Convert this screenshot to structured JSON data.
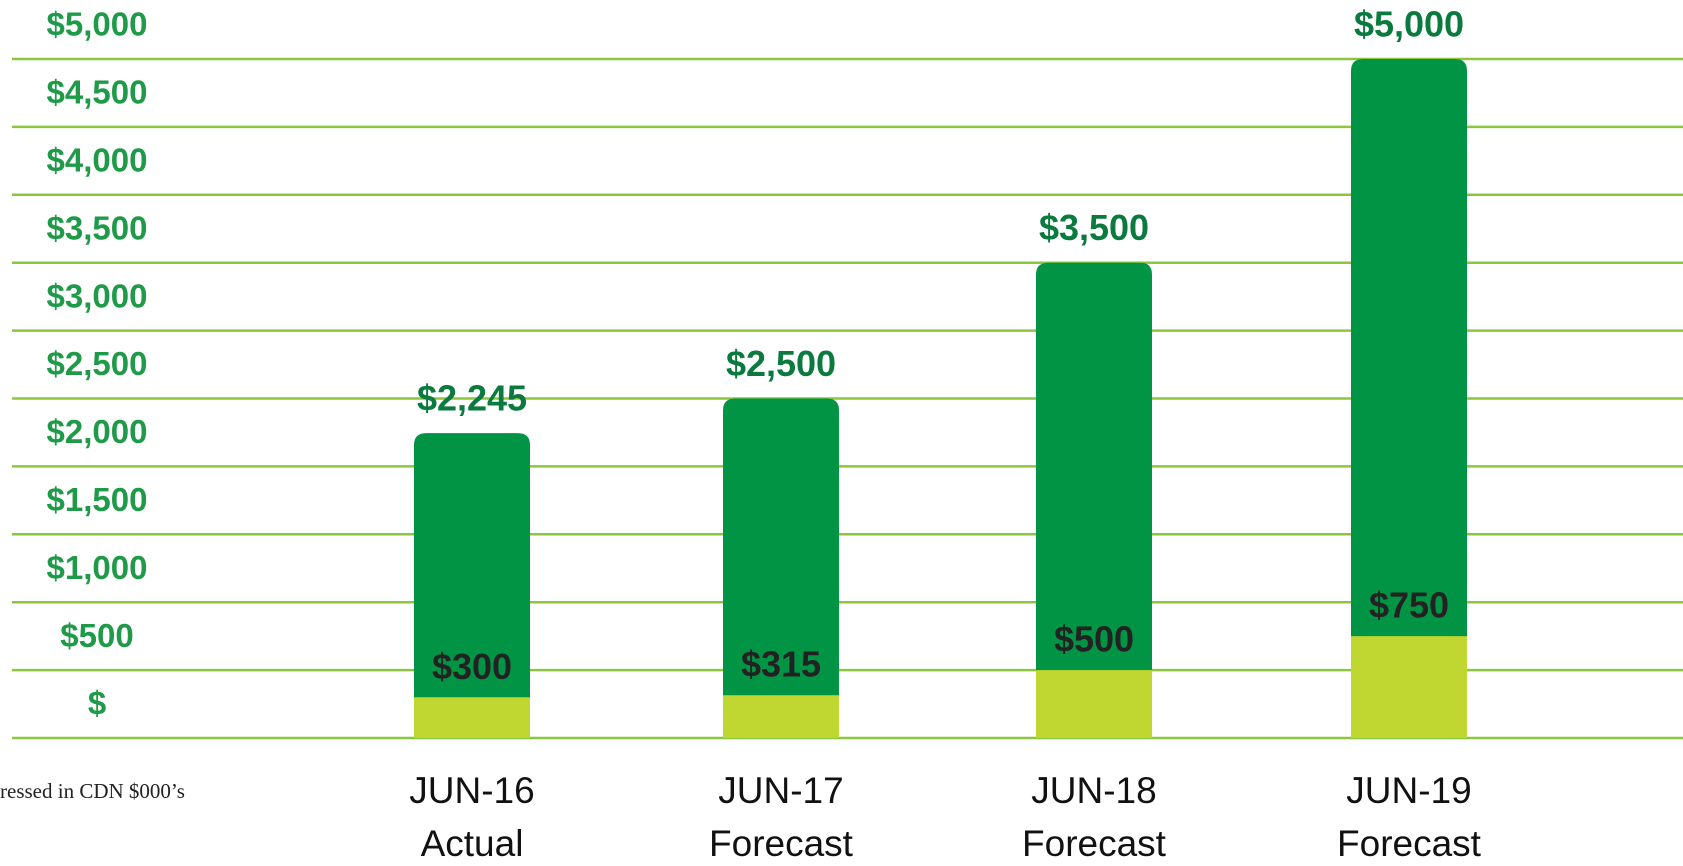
{
  "chart_data": {
    "type": "bar",
    "categories": [
      "JUN-16",
      "JUN-17",
      "JUN-18",
      "JUN-19"
    ],
    "category_sublabels": [
      "Actual",
      "Forecast",
      "Forecast",
      "Forecast"
    ],
    "series": [
      {
        "color": "#009444",
        "values": [
          2245,
          2500,
          3500,
          5000
        ],
        "value_labels": [
          "$2,245",
          "$2,500",
          "$3,500",
          "$5,000"
        ]
      },
      {
        "color": "#bfd730",
        "values": [
          300,
          315,
          500,
          750
        ],
        "value_labels": [
          "$300",
          "$315",
          "$500",
          "$750"
        ]
      }
    ],
    "overlap": true,
    "ylim": [
      0,
      5000
    ],
    "yticks": [
      {
        "value": 0,
        "label": "$"
      },
      {
        "value": 500,
        "label": "$500"
      },
      {
        "value": 1000,
        "label": "$1,000"
      },
      {
        "value": 1500,
        "label": "$1,500"
      },
      {
        "value": 2000,
        "label": "$2,000"
      },
      {
        "value": 2500,
        "label": "$2,500"
      },
      {
        "value": 3000,
        "label": "$3,000"
      },
      {
        "value": 3500,
        "label": "$3,500"
      },
      {
        "value": 4000,
        "label": "$4,000"
      },
      {
        "value": 4500,
        "label": "$4,500"
      },
      {
        "value": 5000,
        "label": "$5,000"
      }
    ],
    "grid": true,
    "grid_color": "#8cc63f",
    "note": "ressed in CDN $000’s"
  }
}
